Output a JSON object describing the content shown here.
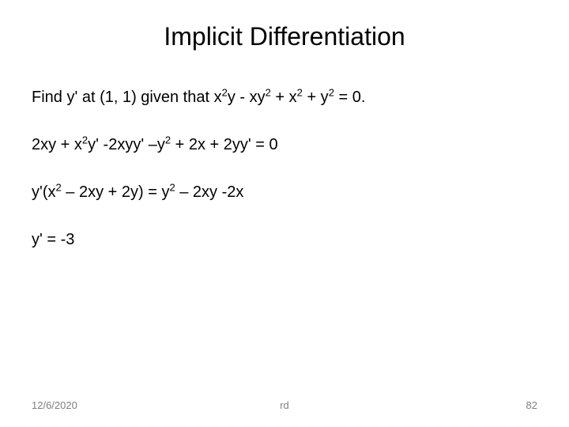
{
  "title": "Implicit Differentiation",
  "lines": {
    "l1_a": "Find y' at (1, 1) given that x",
    "l1_b": "y - xy",
    "l1_c": " + x",
    "l1_d": " + y",
    "l1_e": " = 0.",
    "l2_a": "2xy + x",
    "l2_b": "y' -2xyy' –y",
    "l2_c": " + 2x + 2yy' = 0",
    "l3_a": "y'(x",
    "l3_b": " – 2xy + 2y) = y",
    "l3_c": " – 2xy -2x",
    "l4": "y' = -3"
  },
  "sup2": "2",
  "footer": {
    "date": "12/6/2020",
    "center": "rd",
    "page": "82"
  },
  "colors": {
    "text": "#000000",
    "footer": "#808080",
    "background": "#ffffff"
  },
  "fonts": {
    "title_size": 32,
    "body_size": 20,
    "footer_size": 13
  }
}
